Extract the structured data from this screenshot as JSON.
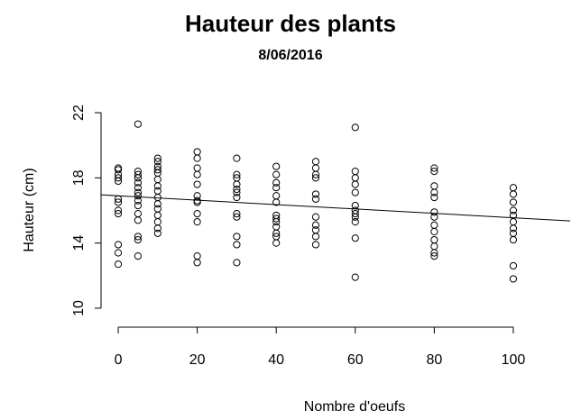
{
  "chart_data": {
    "type": "scatter",
    "title": "Hauteur des plants",
    "subtitle": "8/06/2016",
    "x_label": "Nombre d'oeufs",
    "y_label": "Hauteur (cm)",
    "xlim": [
      -4.3,
      114.4
    ],
    "ylim": [
      9.5,
      22.5
    ],
    "xticks": [
      0,
      20,
      40,
      60,
      80,
      100
    ],
    "yticks": [
      10,
      14,
      18,
      22
    ],
    "color": "#000000",
    "regression": {
      "intercept": 16.9,
      "slope": -0.0135
    },
    "x": [
      0,
      0,
      0,
      0,
      0,
      0,
      0,
      0,
      0,
      0,
      0,
      0,
      5,
      5,
      5,
      5,
      5,
      5,
      5,
      5,
      5,
      5,
      5,
      5,
      5,
      5,
      5,
      10,
      10,
      10,
      10,
      10,
      10,
      10,
      10,
      10,
      10,
      10,
      10,
      10,
      10,
      10,
      20,
      20,
      20,
      20,
      20,
      20,
      20,
      20,
      20,
      20,
      20,
      20,
      30,
      30,
      30,
      30,
      30,
      30,
      30,
      30,
      30,
      30,
      30,
      30,
      40,
      40,
      40,
      40,
      40,
      40,
      40,
      40,
      40,
      40,
      40,
      40,
      40,
      50,
      50,
      50,
      50,
      50,
      50,
      50,
      50,
      50,
      50,
      50,
      60,
      60,
      60,
      60,
      60,
      60,
      60,
      60,
      60,
      60,
      60,
      60,
      80,
      80,
      80,
      80,
      80,
      80,
      80,
      80,
      80,
      80,
      80,
      80,
      80,
      100,
      100,
      100,
      100,
      100,
      100,
      100,
      100,
      100,
      100,
      100
    ],
    "values": [
      18.6,
      18.5,
      18.2,
      18.0,
      17.8,
      16.7,
      16.5,
      16.0,
      15.8,
      13.9,
      13.4,
      12.7,
      21.3,
      18.4,
      18.2,
      18.0,
      17.7,
      17.4,
      17.1,
      16.9,
      16.6,
      16.3,
      15.8,
      15.4,
      14.4,
      14.2,
      13.2,
      19.2,
      19.0,
      18.7,
      18.5,
      18.3,
      17.9,
      17.5,
      17.2,
      16.8,
      16.4,
      16.1,
      15.7,
      15.3,
      14.9,
      14.6,
      19.6,
      19.2,
      18.6,
      18.2,
      17.6,
      16.9,
      16.6,
      16.5,
      15.8,
      15.3,
      13.2,
      12.8,
      19.2,
      18.2,
      18.0,
      17.6,
      17.3,
      17.1,
      16.8,
      15.8,
      15.6,
      14.4,
      13.9,
      12.8,
      18.7,
      18.2,
      17.7,
      17.4,
      16.9,
      16.5,
      15.7,
      15.5,
      15.3,
      15.0,
      14.6,
      14.4,
      14.0,
      19.0,
      18.6,
      18.2,
      18.0,
      17.0,
      16.7,
      15.6,
      15.1,
      14.8,
      14.4,
      13.9,
      21.1,
      18.4,
      18.0,
      17.6,
      17.1,
      16.3,
      16.0,
      15.8,
      15.6,
      15.3,
      14.3,
      11.9,
      18.6,
      18.4,
      17.5,
      17.1,
      16.8,
      15.9,
      15.6,
      15.1,
      14.7,
      14.2,
      13.8,
      13.4,
      13.2,
      17.4,
      17.0,
      16.5,
      16.0,
      15.7,
      15.3,
      14.9,
      14.6,
      14.2,
      12.6,
      11.8
    ]
  }
}
